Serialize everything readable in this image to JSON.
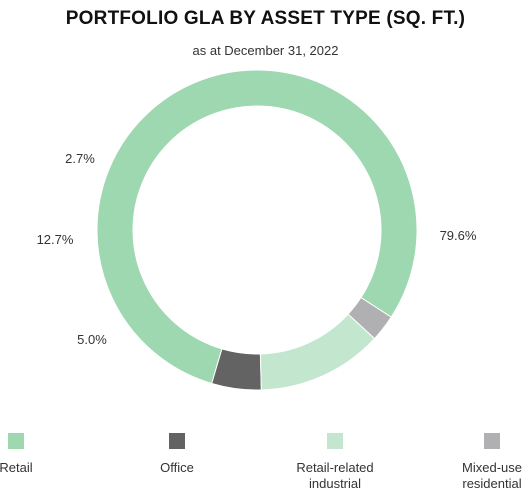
{
  "chart_data": {
    "type": "pie",
    "style": "donut",
    "title": "PORTFOLIO GLA BY ASSET TYPE (SQ. FT.)",
    "subtitle": "as at December 31, 2022",
    "unit": "%",
    "categories": [
      "Retail",
      "Office",
      "Retail-related industrial",
      "Mixed-use residential"
    ],
    "values": [
      79.6,
      5.0,
      12.7,
      2.7
    ],
    "data_labels": [
      "79.6%",
      "5.0%",
      "12.7%",
      "2.7%"
    ],
    "colors": [
      "#9dd8b1",
      "#636363",
      "#c3e6cf",
      "#b0b0b2"
    ],
    "legend_placement": "bottom",
    "legend": [
      {
        "label": "Retail",
        "color": "#9dd8b1"
      },
      {
        "label": "Office",
        "color": "#636363"
      },
      {
        "label": "Retail-related\nindustrial",
        "color": "#c3e6cf"
      },
      {
        "label": "Mixed-use\nresidential",
        "color": "#b0b0b2"
      }
    ]
  }
}
